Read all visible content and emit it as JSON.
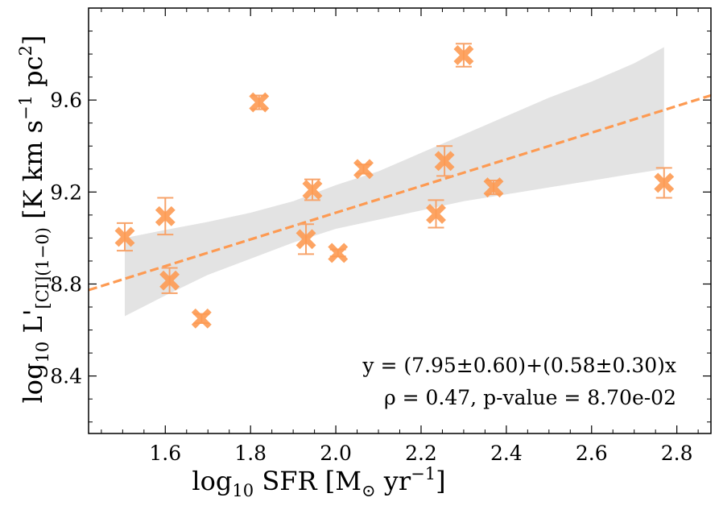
{
  "chart_data": {
    "type": "scatter",
    "xlabel": "log₁₀ SFR [M⊙ yr⁻¹]",
    "ylabel": "log₁₀ L'[CI](1−0) [K km s⁻¹ pc²]",
    "xlabel_parts": {
      "pre": "log",
      "sub": "10",
      "main": " SFR [M",
      "sun_sub": "⊙",
      "mid": " yr",
      "sup": "−1",
      "post": "]"
    },
    "ylabel_parts": {
      "pre": "log",
      "sub": "10",
      "main": " L'",
      "line_sub": "[CI](1−0)",
      "unit": " [K km s",
      "sup1": "−1",
      "mid": " pc",
      "sup2": "2",
      "post": "]"
    },
    "xlim": [
      1.42,
      2.88
    ],
    "ylim": [
      8.15,
      10.0
    ],
    "xticks": [
      1.6,
      1.8,
      2.0,
      2.2,
      2.4,
      2.6,
      2.8
    ],
    "xtick_labels": [
      "1.6",
      "1.8",
      "2.0",
      "2.2",
      "2.4",
      "2.6",
      "2.8"
    ],
    "yticks": [
      8.4,
      8.8,
      9.2,
      9.6
    ],
    "ytick_labels": [
      "8.4",
      "8.8",
      "9.2",
      "9.6"
    ],
    "marker_color": "#fd9a52",
    "errorbar_color": "#f7a36a",
    "points": [
      {
        "x": 1.505,
        "y": 9.005,
        "yerr": 0.06
      },
      {
        "x": 1.6,
        "y": 9.095,
        "yerr": 0.08
      },
      {
        "x": 1.61,
        "y": 8.815,
        "yerr": 0.055
      },
      {
        "x": 1.685,
        "y": 8.65,
        "yerr": 0.02
      },
      {
        "x": 1.82,
        "y": 9.59,
        "yerr": 0.03
      },
      {
        "x": 1.93,
        "y": 8.995,
        "yerr": 0.065
      },
      {
        "x": 1.945,
        "y": 9.21,
        "yerr": 0.045
      },
      {
        "x": 2.005,
        "y": 8.935,
        "yerr": 0.015
      },
      {
        "x": 2.065,
        "y": 9.3,
        "yerr": 0.02
      },
      {
        "x": 2.235,
        "y": 9.105,
        "yerr": 0.06
      },
      {
        "x": 2.255,
        "y": 9.335,
        "yerr": 0.065
      },
      {
        "x": 2.3,
        "y": 9.795,
        "yerr": 0.05
      },
      {
        "x": 2.37,
        "y": 9.22,
        "yerr": 0.03
      },
      {
        "x": 2.77,
        "y": 9.24,
        "yerr": 0.065
      }
    ],
    "fit": {
      "intercept": 7.95,
      "slope": 0.58,
      "color": "#fd9a52",
      "style": "dashed"
    },
    "confidence_band": {
      "color": "#d9d9d9",
      "x": [
        1.505,
        1.6,
        1.7,
        1.8,
        1.9,
        2.0,
        2.1,
        2.2,
        2.3,
        2.4,
        2.5,
        2.6,
        2.7,
        2.77
      ],
      "upper": [
        9.0,
        9.035,
        9.07,
        9.11,
        9.16,
        9.23,
        9.29,
        9.37,
        9.45,
        9.53,
        9.61,
        9.68,
        9.76,
        9.83
      ],
      "lower": [
        8.66,
        8.75,
        8.84,
        8.91,
        8.98,
        9.04,
        9.08,
        9.12,
        9.16,
        9.19,
        9.22,
        9.25,
        9.28,
        9.3
      ]
    },
    "annotations": [
      "y = (7.95±0.60)+(0.58±0.30)x",
      "ρ = 0.47, p-value = 8.70e-02"
    ],
    "legend": "none",
    "grid": false
  }
}
